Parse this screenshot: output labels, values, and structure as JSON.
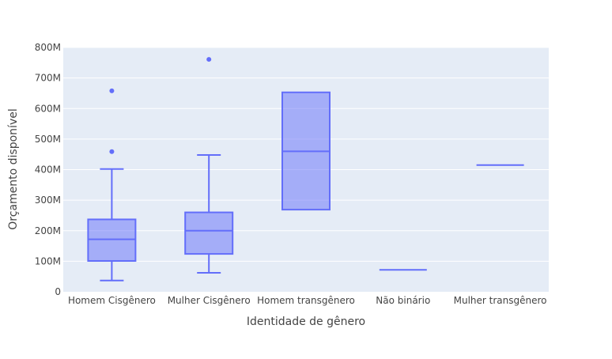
{
  "chart_data": {
    "type": "box",
    "title": "",
    "xlabel": "Identidade de gênero",
    "ylabel": "Orçamento disponível",
    "ylim": [
      0,
      800000000
    ],
    "yticks": [
      0,
      100000000,
      200000000,
      300000000,
      400000000,
      500000000,
      600000000,
      700000000,
      800000000
    ],
    "ytick_labels": [
      "0",
      "100M",
      "200M",
      "300M",
      "400M",
      "500M",
      "600M",
      "700M",
      "800M"
    ],
    "grid": true,
    "categories": [
      "Homem Cisgênero",
      "Mulher Cisgênero",
      "Homem transgênero",
      "Não binário",
      "Mulher transgênero"
    ],
    "boxes": [
      {
        "category": "Homem Cisgênero",
        "min": 37000000,
        "q1": 101000000,
        "median": 172000000,
        "q3": 237000000,
        "max": 402000000,
        "outliers": [
          459000000,
          658000000
        ]
      },
      {
        "category": "Mulher Cisgênero",
        "min": 62000000,
        "q1": 124000000,
        "median": 200000000,
        "q3": 260000000,
        "max": 448000000,
        "outliers": [
          761000000
        ]
      },
      {
        "category": "Homem transgênero",
        "min": 269000000,
        "q1": 269000000,
        "median": 460000000,
        "q3": 653000000,
        "max": 653000000,
        "outliers": []
      },
      {
        "category": "Não binário",
        "min": 72000000,
        "q1": 72000000,
        "median": 72000000,
        "q3": 72000000,
        "max": 72000000,
        "outliers": []
      },
      {
        "category": "Mulher transgênero",
        "min": 415000000,
        "q1": 415000000,
        "median": 415000000,
        "q3": 415000000,
        "max": 415000000,
        "outliers": []
      }
    ],
    "colors": {
      "line": "#636efa",
      "fill": "rgba(99,110,250,0.5)",
      "plot_bg": "#e5ecf6",
      "grid": "#ffffff"
    }
  }
}
